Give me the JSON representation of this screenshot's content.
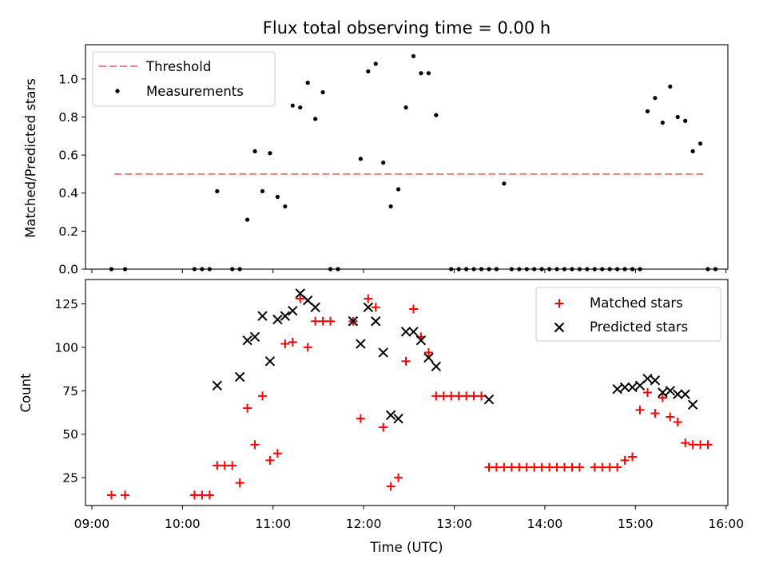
{
  "chart_data": [
    {
      "type": "scatter",
      "title": "Flux total observing time = 0.00 h",
      "xlabel": "",
      "ylabel": "Matched/Predicted stars",
      "x_range_hours": [
        8.93,
        16.02
      ],
      "ylim": [
        0,
        1.18
      ],
      "yticks": [
        0.0,
        0.2,
        0.4,
        0.6,
        0.8,
        1.0
      ],
      "ytick_labels": [
        "0.0",
        "0.2",
        "0.4",
        "0.6",
        "0.8",
        "1.0"
      ],
      "xticks_hours": [
        9,
        10,
        11,
        12,
        13,
        14,
        15,
        16
      ],
      "show_xtick_labels": false,
      "legend_placement": "top-left",
      "threshold": {
        "name": "Threshold",
        "value": 0.5,
        "x": [
          "09:15",
          "15:45"
        ],
        "color": "#f08080"
      },
      "series": [
        {
          "name": "Measurements",
          "color": "#000000",
          "marker": "dot",
          "points": [
            [
              "09:13",
              0
            ],
            [
              "09:22",
              0
            ],
            [
              "10:08",
              0
            ],
            [
              "10:13",
              0
            ],
            [
              "10:18",
              0
            ],
            [
              "10:23",
              0.41
            ],
            [
              "10:33",
              0
            ],
            [
              "10:38",
              0
            ],
            [
              "10:43",
              0.26
            ],
            [
              "10:48",
              0.62
            ],
            [
              "10:53",
              0.41
            ],
            [
              "10:58",
              0.61
            ],
            [
              "11:03",
              0.38
            ],
            [
              "11:08",
              0.33
            ],
            [
              "11:13",
              0.86
            ],
            [
              "11:18",
              0.85
            ],
            [
              "11:23",
              0.98
            ],
            [
              "11:28",
              0.79
            ],
            [
              "11:33",
              0.93
            ],
            [
              "11:38",
              0
            ],
            [
              "11:43",
              0
            ],
            [
              "11:58",
              0.58
            ],
            [
              "12:03",
              1.04
            ],
            [
              "12:08",
              1.08
            ],
            [
              "12:13",
              0.56
            ],
            [
              "12:18",
              0.33
            ],
            [
              "12:23",
              0.42
            ],
            [
              "12:28",
              0.85
            ],
            [
              "12:33",
              1.12
            ],
            [
              "12:38",
              1.03
            ],
            [
              "12:43",
              1.03
            ],
            [
              "12:48",
              0.81
            ],
            [
              "12:58",
              0
            ],
            [
              "13:03",
              0
            ],
            [
              "13:08",
              0
            ],
            [
              "13:13",
              0
            ],
            [
              "13:18",
              0
            ],
            [
              "13:23",
              0
            ],
            [
              "13:28",
              0
            ],
            [
              "13:33",
              0.45
            ],
            [
              "13:38",
              0
            ],
            [
              "13:43",
              0
            ],
            [
              "13:48",
              0
            ],
            [
              "13:53",
              0
            ],
            [
              "13:58",
              0
            ],
            [
              "14:03",
              0
            ],
            [
              "14:08",
              0
            ],
            [
              "14:13",
              0
            ],
            [
              "14:18",
              0
            ],
            [
              "14:23",
              0
            ],
            [
              "14:28",
              0
            ],
            [
              "14:33",
              0
            ],
            [
              "14:38",
              0
            ],
            [
              "14:43",
              0
            ],
            [
              "14:48",
              0
            ],
            [
              "14:53",
              0
            ],
            [
              "14:58",
              0
            ],
            [
              "15:03",
              0
            ],
            [
              "15:08",
              0.83
            ],
            [
              "15:13",
              0.9
            ],
            [
              "15:18",
              0.77
            ],
            [
              "15:23",
              0.96
            ],
            [
              "15:28",
              0.8
            ],
            [
              "15:33",
              0.78
            ],
            [
              "15:38",
              0.62
            ],
            [
              "15:43",
              0.66
            ],
            [
              "15:48",
              0
            ],
            [
              "15:53",
              0
            ]
          ]
        }
      ]
    },
    {
      "type": "scatter",
      "title": "",
      "xlabel": "Time (UTC)",
      "ylabel": "Count",
      "x_range_hours": [
        8.93,
        16.02
      ],
      "ylim": [
        9,
        139
      ],
      "yticks": [
        25,
        50,
        75,
        100,
        125
      ],
      "ytick_labels": [
        "25",
        "50",
        "75",
        "100",
        "125"
      ],
      "xticks_hours": [
        9,
        10,
        11,
        12,
        13,
        14,
        15,
        16
      ],
      "xtick_labels": [
        "09:00",
        "10:00",
        "11:00",
        "12:00",
        "13:00",
        "14:00",
        "15:00",
        "16:00"
      ],
      "legend_placement": "top-right",
      "series": [
        {
          "name": "Matched stars",
          "color": "#ff0000",
          "marker": "plus",
          "points": [
            [
              "09:13",
              15
            ],
            [
              "09:22",
              15
            ],
            [
              "10:08",
              15
            ],
            [
              "10:13",
              15
            ],
            [
              "10:18",
              15
            ],
            [
              "10:23",
              32
            ],
            [
              "10:28",
              32
            ],
            [
              "10:33",
              32
            ],
            [
              "10:38",
              22
            ],
            [
              "10:43",
              65
            ],
            [
              "10:48",
              44
            ],
            [
              "10:53",
              72
            ],
            [
              "10:58",
              35
            ],
            [
              "11:03",
              39
            ],
            [
              "11:08",
              102
            ],
            [
              "11:13",
              103
            ],
            [
              "11:18",
              128
            ],
            [
              "11:23",
              100
            ],
            [
              "11:28",
              115
            ],
            [
              "11:33",
              115
            ],
            [
              "11:38",
              115
            ],
            [
              "11:53",
              115
            ],
            [
              "11:58",
              59
            ],
            [
              "12:03",
              128
            ],
            [
              "12:08",
              123
            ],
            [
              "12:13",
              54
            ],
            [
              "12:18",
              20
            ],
            [
              "12:23",
              25
            ],
            [
              "12:28",
              92
            ],
            [
              "12:33",
              122
            ],
            [
              "12:38",
              106
            ],
            [
              "12:43",
              97
            ],
            [
              "12:48",
              72
            ],
            [
              "12:53",
              72
            ],
            [
              "12:58",
              72
            ],
            [
              "13:03",
              72
            ],
            [
              "13:08",
              72
            ],
            [
              "13:13",
              72
            ],
            [
              "13:18",
              72
            ],
            [
              "13:23",
              31
            ],
            [
              "13:28",
              31
            ],
            [
              "13:33",
              31
            ],
            [
              "13:38",
              31
            ],
            [
              "13:43",
              31
            ],
            [
              "13:48",
              31
            ],
            [
              "13:53",
              31
            ],
            [
              "13:58",
              31
            ],
            [
              "14:03",
              31
            ],
            [
              "14:08",
              31
            ],
            [
              "14:13",
              31
            ],
            [
              "14:18",
              31
            ],
            [
              "14:23",
              31
            ],
            [
              "14:33",
              31
            ],
            [
              "14:38",
              31
            ],
            [
              "14:43",
              31
            ],
            [
              "14:48",
              31
            ],
            [
              "14:53",
              35
            ],
            [
              "14:58",
              37
            ],
            [
              "15:03",
              64
            ],
            [
              "15:08",
              74
            ],
            [
              "15:13",
              62
            ],
            [
              "15:18",
              71
            ],
            [
              "15:23",
              60
            ],
            [
              "15:28",
              57
            ],
            [
              "15:33",
              45
            ],
            [
              "15:38",
              44
            ],
            [
              "15:43",
              44
            ],
            [
              "15:48",
              44
            ]
          ]
        },
        {
          "name": "Predicted stars",
          "color": "#000000",
          "marker": "x",
          "points": [
            [
              "10:23",
              78
            ],
            [
              "10:38",
              83
            ],
            [
              "10:43",
              104
            ],
            [
              "10:48",
              106
            ],
            [
              "10:53",
              118
            ],
            [
              "10:58",
              92
            ],
            [
              "11:03",
              116
            ],
            [
              "11:08",
              118
            ],
            [
              "11:13",
              121
            ],
            [
              "11:18",
              131
            ],
            [
              "11:23",
              127
            ],
            [
              "11:28",
              123
            ],
            [
              "11:53",
              115
            ],
            [
              "11:58",
              102
            ],
            [
              "12:03",
              123
            ],
            [
              "12:08",
              115
            ],
            [
              "12:13",
              97
            ],
            [
              "12:18",
              61
            ],
            [
              "12:23",
              59
            ],
            [
              "12:28",
              109
            ],
            [
              "12:33",
              109
            ],
            [
              "12:38",
              104
            ],
            [
              "12:43",
              94
            ],
            [
              "12:48",
              89
            ],
            [
              "13:23",
              70
            ],
            [
              "14:48",
              76
            ],
            [
              "14:53",
              77
            ],
            [
              "14:58",
              77
            ],
            [
              "15:03",
              78
            ],
            [
              "15:08",
              82
            ],
            [
              "15:13",
              81
            ],
            [
              "15:18",
              74
            ],
            [
              "15:23",
              75
            ],
            [
              "15:28",
              73
            ],
            [
              "15:33",
              73
            ],
            [
              "15:38",
              67
            ]
          ]
        }
      ]
    }
  ]
}
